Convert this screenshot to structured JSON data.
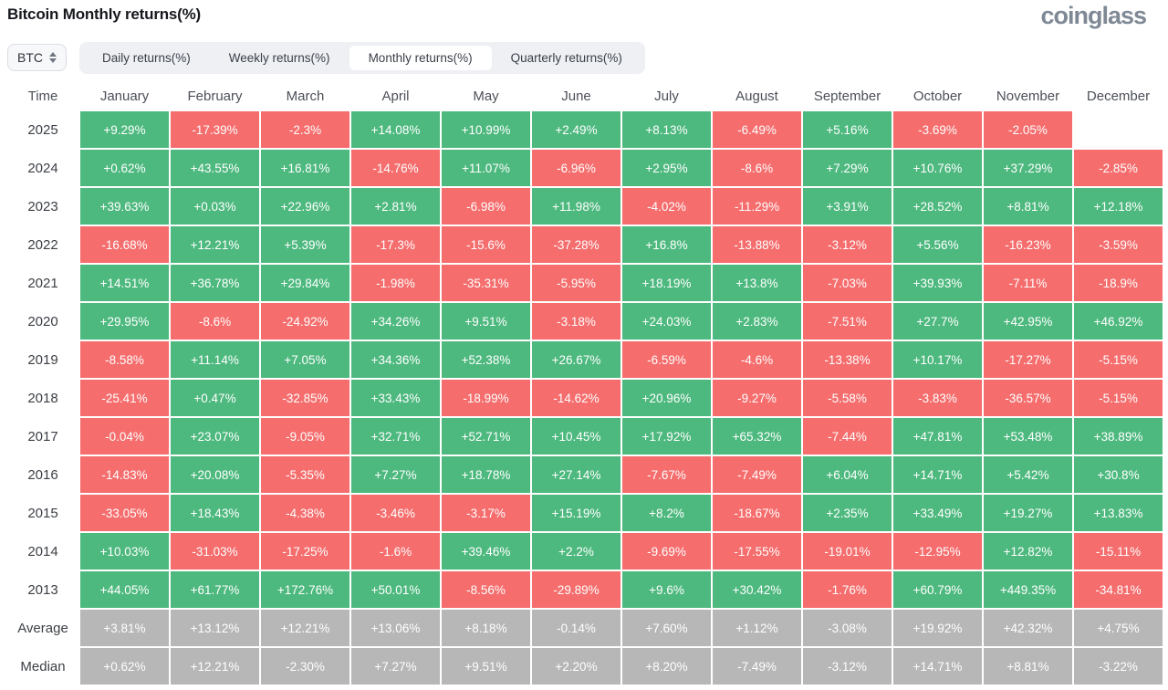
{
  "page": {
    "title": "Bitcoin Monthly returns(%)",
    "logo": "coinglass"
  },
  "toolbar": {
    "symbol_selector": {
      "value": "BTC"
    },
    "tabs": [
      {
        "label": "Daily returns(%)",
        "active": false
      },
      {
        "label": "Weekly returns(%)",
        "active": false
      },
      {
        "label": "Monthly returns(%)",
        "active": true
      },
      {
        "label": "Quarterly returns(%)",
        "active": false
      }
    ]
  },
  "colors": {
    "positive": "#4eb97f",
    "negative": "#f56d6d",
    "summary": "#b7b7b7",
    "cell_text": "#ffffff"
  },
  "chart_data": {
    "type": "heatmap",
    "title": "Bitcoin Monthly returns(%)",
    "corner_label": "Time",
    "columns": [
      "January",
      "February",
      "March",
      "April",
      "May",
      "June",
      "July",
      "August",
      "September",
      "October",
      "November",
      "December"
    ],
    "rows": [
      {
        "label": "2025",
        "kind": "year",
        "values": [
          "+9.29%",
          "-17.39%",
          "-2.3%",
          "+14.08%",
          "+10.99%",
          "+2.49%",
          "+8.13%",
          "-6.49%",
          "+5.16%",
          "-3.69%",
          "-2.05%",
          ""
        ]
      },
      {
        "label": "2024",
        "kind": "year",
        "values": [
          "+0.62%",
          "+43.55%",
          "+16.81%",
          "-14.76%",
          "+11.07%",
          "-6.96%",
          "+2.95%",
          "-8.6%",
          "+7.29%",
          "+10.76%",
          "+37.29%",
          "-2.85%"
        ]
      },
      {
        "label": "2023",
        "kind": "year",
        "values": [
          "+39.63%",
          "+0.03%",
          "+22.96%",
          "+2.81%",
          "-6.98%",
          "+11.98%",
          "-4.02%",
          "-11.29%",
          "+3.91%",
          "+28.52%",
          "+8.81%",
          "+12.18%"
        ]
      },
      {
        "label": "2022",
        "kind": "year",
        "values": [
          "-16.68%",
          "+12.21%",
          "+5.39%",
          "-17.3%",
          "-15.6%",
          "-37.28%",
          "+16.8%",
          "-13.88%",
          "-3.12%",
          "+5.56%",
          "-16.23%",
          "-3.59%"
        ]
      },
      {
        "label": "2021",
        "kind": "year",
        "values": [
          "+14.51%",
          "+36.78%",
          "+29.84%",
          "-1.98%",
          "-35.31%",
          "-5.95%",
          "+18.19%",
          "+13.8%",
          "-7.03%",
          "+39.93%",
          "-7.11%",
          "-18.9%"
        ]
      },
      {
        "label": "2020",
        "kind": "year",
        "values": [
          "+29.95%",
          "-8.6%",
          "-24.92%",
          "+34.26%",
          "+9.51%",
          "-3.18%",
          "+24.03%",
          "+2.83%",
          "-7.51%",
          "+27.7%",
          "+42.95%",
          "+46.92%"
        ]
      },
      {
        "label": "2019",
        "kind": "year",
        "values": [
          "-8.58%",
          "+11.14%",
          "+7.05%",
          "+34.36%",
          "+52.38%",
          "+26.67%",
          "-6.59%",
          "-4.6%",
          "-13.38%",
          "+10.17%",
          "-17.27%",
          "-5.15%"
        ]
      },
      {
        "label": "2018",
        "kind": "year",
        "values": [
          "-25.41%",
          "+0.47%",
          "-32.85%",
          "+33.43%",
          "-18.99%",
          "-14.62%",
          "+20.96%",
          "-9.27%",
          "-5.58%",
          "-3.83%",
          "-36.57%",
          "-5.15%"
        ]
      },
      {
        "label": "2017",
        "kind": "year",
        "values": [
          "-0.04%",
          "+23.07%",
          "-9.05%",
          "+32.71%",
          "+52.71%",
          "+10.45%",
          "+17.92%",
          "+65.32%",
          "-7.44%",
          "+47.81%",
          "+53.48%",
          "+38.89%"
        ]
      },
      {
        "label": "2016",
        "kind": "year",
        "values": [
          "-14.83%",
          "+20.08%",
          "-5.35%",
          "+7.27%",
          "+18.78%",
          "+27.14%",
          "-7.67%",
          "-7.49%",
          "+6.04%",
          "+14.71%",
          "+5.42%",
          "+30.8%"
        ]
      },
      {
        "label": "2015",
        "kind": "year",
        "values": [
          "-33.05%",
          "+18.43%",
          "-4.38%",
          "-3.46%",
          "-3.17%",
          "+15.19%",
          "+8.2%",
          "-18.67%",
          "+2.35%",
          "+33.49%",
          "+19.27%",
          "+13.83%"
        ]
      },
      {
        "label": "2014",
        "kind": "year",
        "values": [
          "+10.03%",
          "-31.03%",
          "-17.25%",
          "-1.6%",
          "+39.46%",
          "+2.2%",
          "-9.69%",
          "-17.55%",
          "-19.01%",
          "-12.95%",
          "+12.82%",
          "-15.11%"
        ]
      },
      {
        "label": "2013",
        "kind": "year",
        "values": [
          "+44.05%",
          "+61.77%",
          "+172.76%",
          "+50.01%",
          "-8.56%",
          "-29.89%",
          "+9.6%",
          "+30.42%",
          "-1.76%",
          "+60.79%",
          "+449.35%",
          "-34.81%"
        ]
      },
      {
        "label": "Average",
        "kind": "summary",
        "values": [
          "+3.81%",
          "+13.12%",
          "+12.21%",
          "+13.06%",
          "+8.18%",
          "-0.14%",
          "+7.60%",
          "+1.12%",
          "-3.08%",
          "+19.92%",
          "+42.32%",
          "+4.75%"
        ]
      },
      {
        "label": "Median",
        "kind": "summary",
        "values": [
          "+0.62%",
          "+12.21%",
          "-2.30%",
          "+7.27%",
          "+9.51%",
          "+2.20%",
          "+8.20%",
          "-7.49%",
          "-3.12%",
          "+14.71%",
          "+8.81%",
          "-3.22%"
        ]
      }
    ]
  }
}
